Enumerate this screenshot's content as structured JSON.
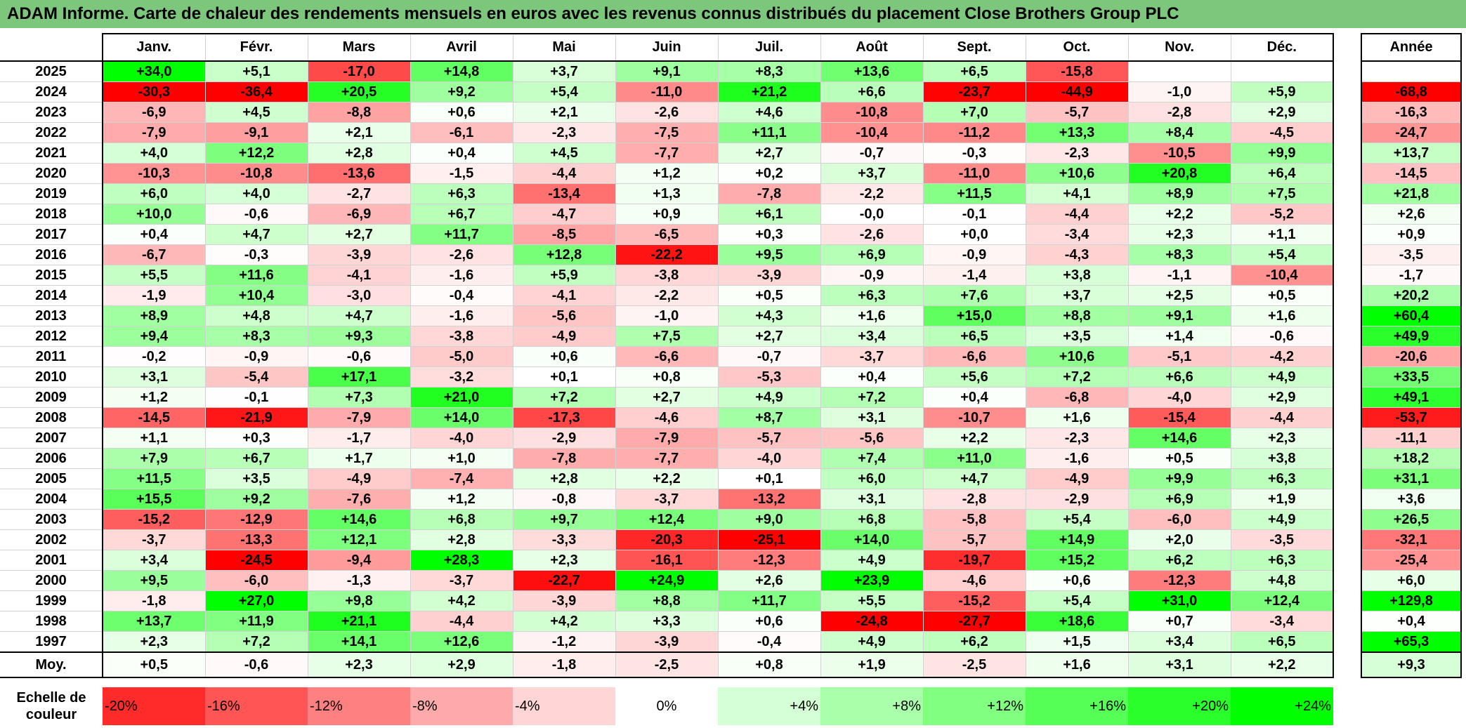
{
  "title": "ADAM Informe. Carte de chaleur des rendements mensuels en euros avec les revenus connus distribués du placement Close Brothers Group PLC",
  "chart_data": {
    "type": "heatmap",
    "months": [
      "Janv.",
      "Févr.",
      "Mars",
      "Avril",
      "Mai",
      "Juin",
      "Juil.",
      "Août",
      "Sept.",
      "Oct.",
      "Nov.",
      "Déc."
    ],
    "annual_header": "Année",
    "average_label": "Moy.",
    "rows": [
      {
        "year": "2025",
        "values": [
          34.0,
          5.1,
          -17.0,
          14.8,
          3.7,
          9.1,
          8.3,
          13.6,
          6.5,
          -15.8,
          null,
          null
        ],
        "annual": null
      },
      {
        "year": "2024",
        "values": [
          -30.3,
          -36.4,
          20.5,
          9.2,
          5.4,
          -11.0,
          21.2,
          6.6,
          -23.7,
          -44.9,
          -1.0,
          5.9
        ],
        "annual": -68.8
      },
      {
        "year": "2023",
        "values": [
          -6.9,
          4.5,
          -8.8,
          0.6,
          2.1,
          -2.6,
          4.6,
          -10.8,
          7.0,
          -5.7,
          -2.8,
          2.9
        ],
        "annual": -16.3
      },
      {
        "year": "2022",
        "values": [
          -7.9,
          -9.1,
          2.1,
          -6.1,
          -2.3,
          -7.5,
          11.1,
          -10.4,
          -11.2,
          13.3,
          8.4,
          -4.5
        ],
        "annual": -24.7
      },
      {
        "year": "2021",
        "values": [
          4.0,
          12.2,
          2.8,
          0.4,
          4.5,
          -7.7,
          2.7,
          -0.7,
          -0.3,
          -2.3,
          -10.5,
          9.9
        ],
        "annual": 13.7
      },
      {
        "year": "2020",
        "values": [
          -10.3,
          -10.8,
          -13.6,
          -1.5,
          -4.4,
          1.2,
          0.2,
          3.7,
          -11.0,
          10.6,
          20.8,
          6.4
        ],
        "annual": -14.5
      },
      {
        "year": "2019",
        "values": [
          6.0,
          4.0,
          -2.7,
          6.3,
          -13.4,
          1.3,
          -7.8,
          -2.2,
          11.5,
          4.1,
          8.9,
          7.5
        ],
        "annual": 21.8
      },
      {
        "year": "2018",
        "values": [
          10.0,
          -0.6,
          -6.9,
          6.7,
          -4.7,
          0.9,
          6.1,
          -0.0,
          -0.1,
          -4.4,
          2.2,
          -5.2
        ],
        "annual": 2.6
      },
      {
        "year": "2017",
        "values": [
          0.4,
          4.7,
          2.7,
          11.7,
          -8.5,
          -6.5,
          0.3,
          -2.6,
          0.0,
          -3.4,
          2.3,
          1.1
        ],
        "annual": 0.9
      },
      {
        "year": "2016",
        "values": [
          -6.7,
          -0.3,
          -3.9,
          -2.6,
          12.8,
          -22.2,
          9.5,
          6.9,
          -0.9,
          -4.3,
          8.3,
          5.4
        ],
        "annual": -3.5
      },
      {
        "year": "2015",
        "values": [
          5.5,
          11.6,
          -4.1,
          -1.6,
          5.9,
          -3.8,
          -3.9,
          -0.9,
          -1.4,
          3.8,
          -1.1,
          -10.4
        ],
        "annual": -1.7
      },
      {
        "year": "2014",
        "values": [
          -1.9,
          10.4,
          -3.0,
          -0.4,
          -4.1,
          -2.2,
          0.5,
          6.3,
          7.6,
          3.7,
          2.5,
          0.5
        ],
        "annual": 20.2
      },
      {
        "year": "2013",
        "values": [
          8.9,
          4.8,
          4.7,
          -1.6,
          -5.6,
          -1.0,
          4.3,
          1.6,
          15.0,
          8.8,
          9.1,
          1.6
        ],
        "annual": 60.4
      },
      {
        "year": "2012",
        "values": [
          9.4,
          8.3,
          9.3,
          -3.8,
          -4.9,
          7.5,
          2.7,
          3.4,
          6.5,
          3.5,
          1.4,
          -0.6
        ],
        "annual": 49.9
      },
      {
        "year": "2011",
        "values": [
          -0.2,
          -0.9,
          -0.6,
          -5.0,
          0.6,
          -6.6,
          -0.7,
          -3.7,
          -6.6,
          10.6,
          -5.1,
          -4.2
        ],
        "annual": -20.6
      },
      {
        "year": "2010",
        "values": [
          3.1,
          -5.4,
          17.1,
          -3.2,
          0.1,
          0.8,
          -5.3,
          0.4,
          5.6,
          7.2,
          6.6,
          4.9
        ],
        "annual": 33.5
      },
      {
        "year": "2009",
        "values": [
          1.2,
          -0.1,
          7.3,
          21.0,
          7.2,
          2.7,
          4.9,
          7.2,
          0.4,
          -6.8,
          -4.0,
          2.9
        ],
        "annual": 49.1
      },
      {
        "year": "2008",
        "values": [
          -14.5,
          -21.9,
          -7.9,
          14.0,
          -17.3,
          -4.6,
          8.7,
          3.1,
          -10.7,
          1.6,
          -15.4,
          -4.4
        ],
        "annual": -53.7
      },
      {
        "year": "2007",
        "values": [
          1.1,
          0.3,
          -1.7,
          -4.0,
          -2.9,
          -7.9,
          -5.7,
          -5.6,
          2.2,
          -2.3,
          14.6,
          2.3
        ],
        "annual": -11.1
      },
      {
        "year": "2006",
        "values": [
          7.9,
          6.7,
          1.7,
          1.0,
          -7.8,
          -7.7,
          -4.0,
          7.4,
          11.0,
          -1.6,
          0.5,
          3.8
        ],
        "annual": 18.2
      },
      {
        "year": "2005",
        "values": [
          11.5,
          3.5,
          -4.9,
          -7.4,
          2.8,
          2.2,
          0.1,
          6.0,
          4.7,
          -4.9,
          9.9,
          6.3
        ],
        "annual": 31.1
      },
      {
        "year": "2004",
        "values": [
          15.5,
          9.2,
          -7.6,
          1.2,
          -0.8,
          -3.7,
          -13.2,
          3.1,
          -2.8,
          -2.9,
          6.9,
          1.9
        ],
        "annual": 3.6
      },
      {
        "year": "2003",
        "values": [
          -15.2,
          -12.9,
          14.6,
          6.8,
          9.7,
          12.4,
          9.0,
          6.8,
          -5.8,
          5.4,
          -6.0,
          4.9
        ],
        "annual": 26.5
      },
      {
        "year": "2002",
        "values": [
          -3.7,
          -13.3,
          12.1,
          2.8,
          -3.3,
          -20.3,
          -25.1,
          14.0,
          -5.7,
          14.9,
          2.0,
          -3.5
        ],
        "annual": -32.1
      },
      {
        "year": "2001",
        "values": [
          3.4,
          -24.5,
          -9.4,
          28.3,
          2.3,
          -16.1,
          -12.3,
          4.9,
          -19.7,
          15.2,
          6.2,
          6.3
        ],
        "annual": -25.4
      },
      {
        "year": "2000",
        "values": [
          9.5,
          -6.0,
          -1.3,
          -3.7,
          -22.7,
          24.9,
          2.6,
          23.9,
          -4.6,
          0.6,
          -12.3,
          4.8
        ],
        "annual": 6.0
      },
      {
        "year": "1999",
        "values": [
          -1.8,
          27.0,
          9.8,
          4.2,
          -3.9,
          8.8,
          11.7,
          5.5,
          -15.2,
          5.4,
          31.0,
          12.4
        ],
        "annual": 129.8
      },
      {
        "year": "1998",
        "values": [
          13.7,
          11.9,
          21.1,
          -4.4,
          4.2,
          3.3,
          0.6,
          -24.8,
          -27.7,
          18.6,
          0.7,
          -3.4
        ],
        "annual": 0.4
      },
      {
        "year": "1997",
        "values": [
          2.3,
          7.2,
          14.1,
          12.6,
          -1.2,
          -3.9,
          -0.4,
          4.9,
          6.2,
          1.5,
          3.4,
          6.5
        ],
        "annual": 65.3
      }
    ],
    "averages": [
      0.5,
      -0.6,
      2.3,
      2.9,
      -1.8,
      -2.5,
      0.8,
      1.9,
      -2.5,
      1.6,
      3.1,
      2.2
    ],
    "annual_average": 9.3,
    "scale_label": "Echelle de couleur",
    "scale": [
      "-20%",
      "-16%",
      "-12%",
      "-8%",
      "-4%",
      "0%",
      "+4%",
      "+8%",
      "+12%",
      "+16%",
      "+20%",
      "+24%"
    ],
    "colors": {
      "negative_max": "#ff0000",
      "neutral": "#ffffff",
      "positive_max": "#00ff00",
      "title_bg": "#7dc77d"
    }
  }
}
